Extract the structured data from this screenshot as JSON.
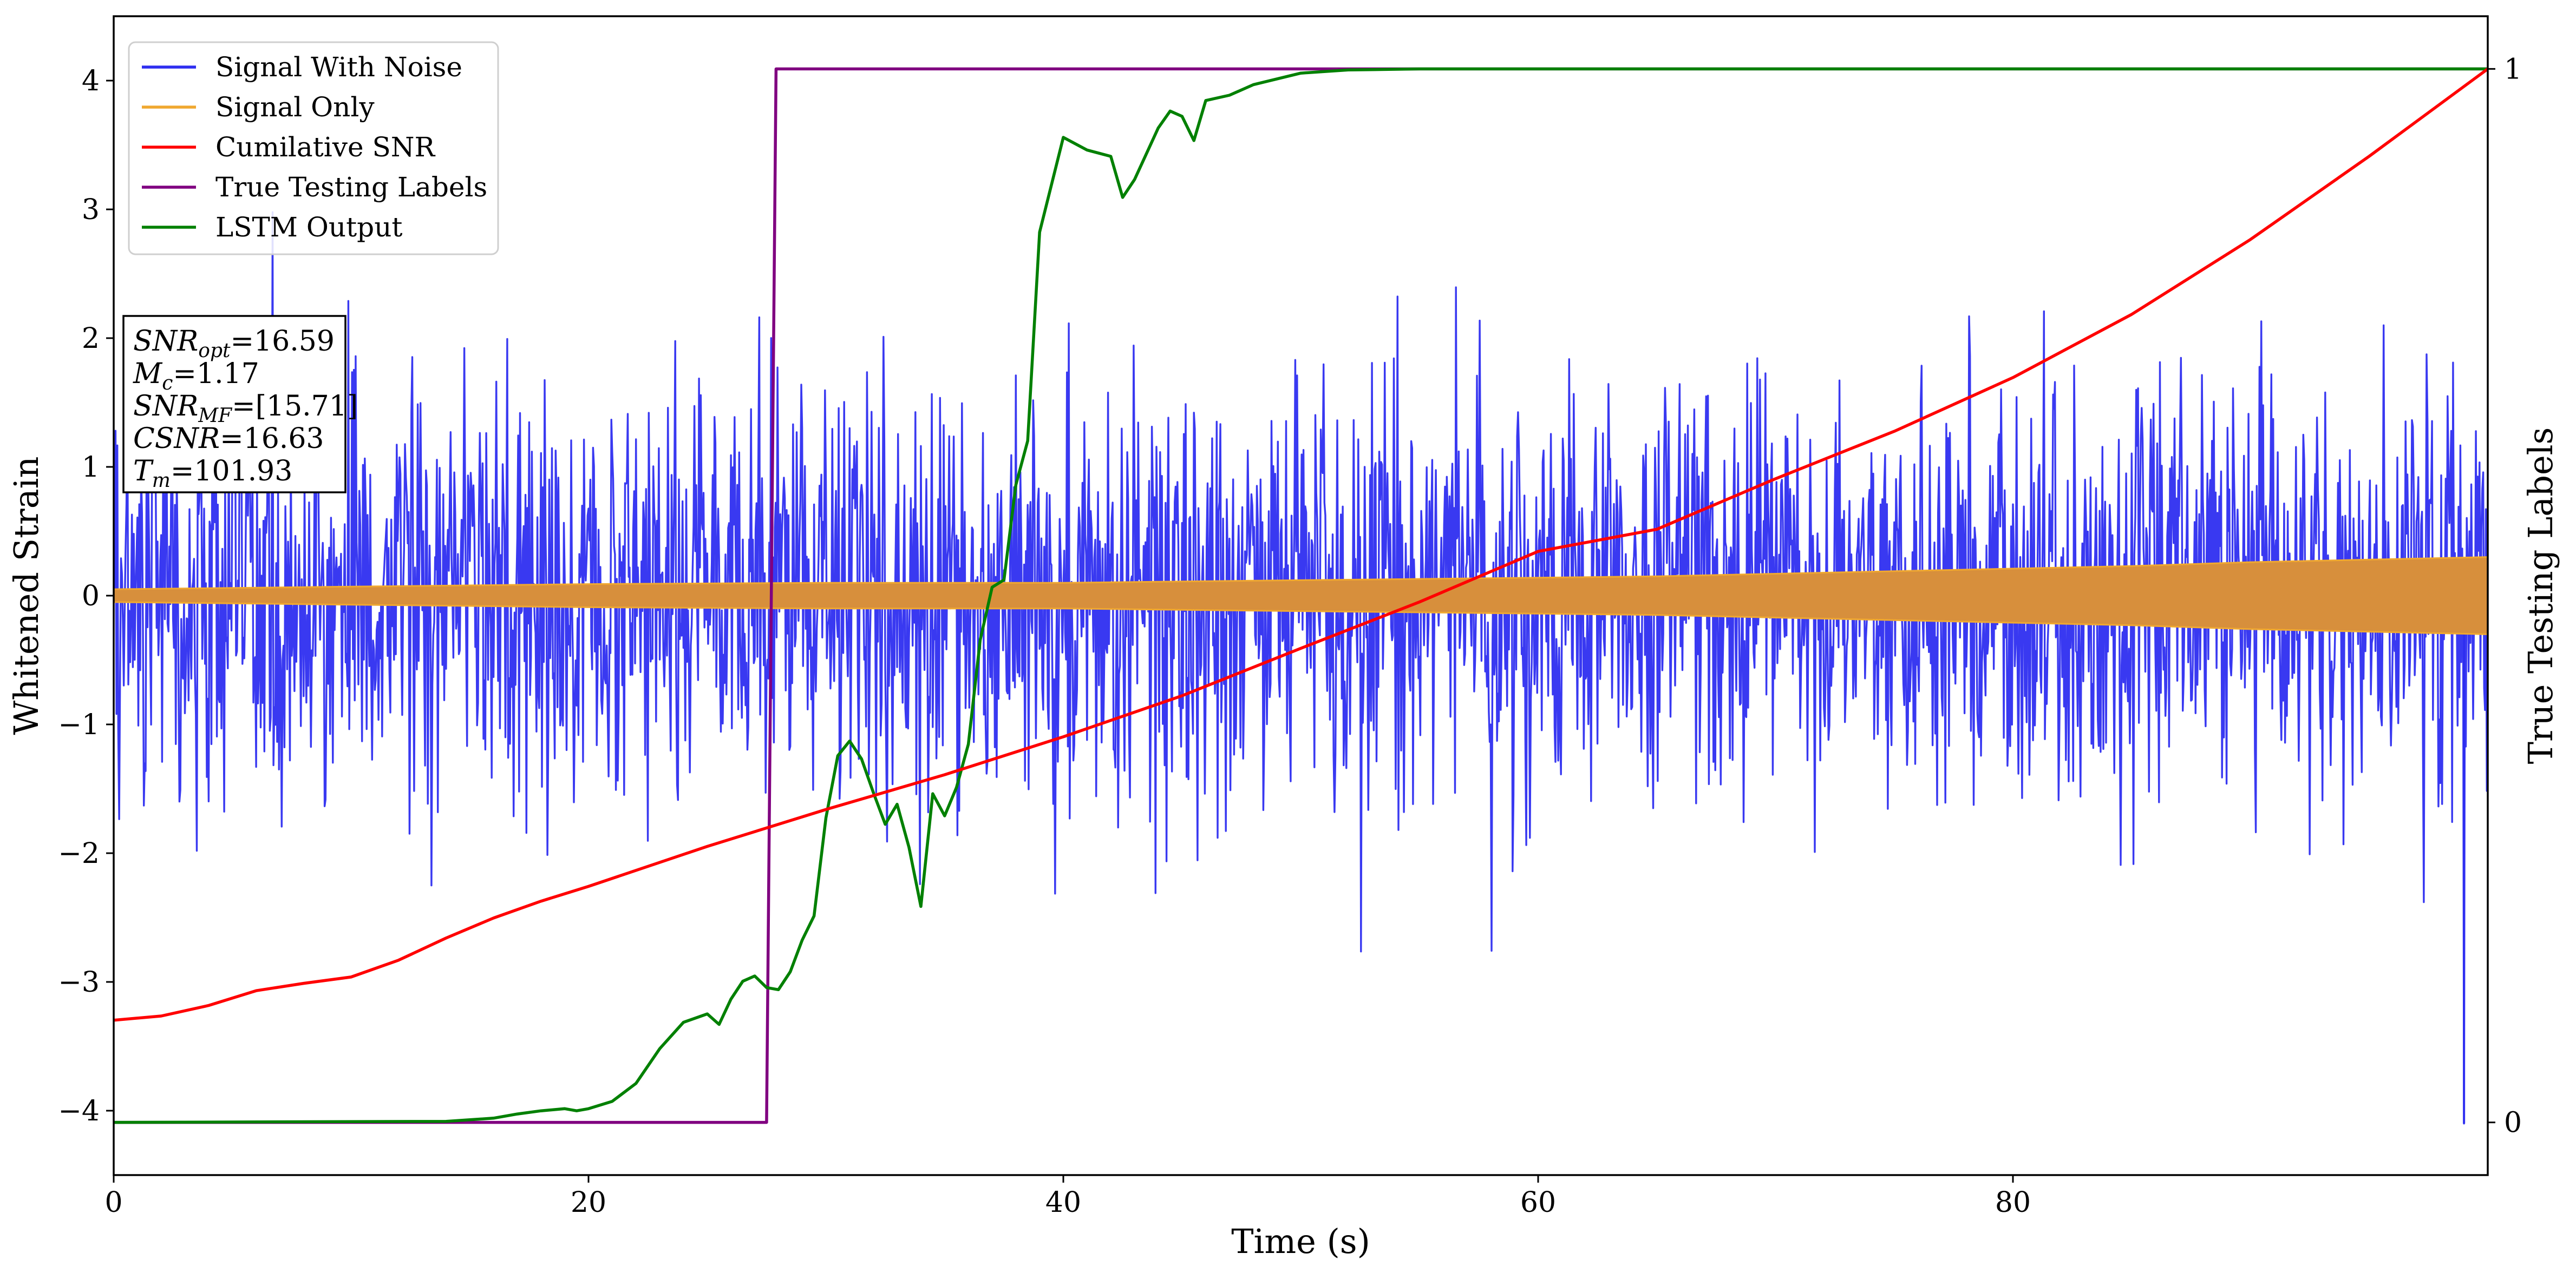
{
  "chart_data": {
    "type": "line",
    "xlabel": "Time (s)",
    "ylabel": "Whitened Strain",
    "ylabel_right": "True Testing Labels",
    "xlim": [
      0,
      100
    ],
    "ylim": [
      -4.5,
      4.5
    ],
    "ylim_right": [
      -0.05,
      1.05
    ],
    "xticks": [
      0,
      20,
      40,
      60,
      80
    ],
    "yticks": [
      -4,
      -3,
      -2,
      -1,
      0,
      1,
      2,
      3,
      4
    ],
    "yticks_right": [
      0,
      1
    ],
    "tick_labels": {
      "x": [
        "0",
        "20",
        "40",
        "60",
        "80"
      ],
      "y": [
        "−4",
        "−3",
        "−2",
        "−1",
        "0",
        "1",
        "2",
        "3",
        "4"
      ],
      "y_right": [
        "0",
        "1"
      ]
    },
    "legend": {
      "placement": "top-left",
      "entries": [
        {
          "label": "Signal With Noise",
          "color": "#2e2ef0"
        },
        {
          "label": "Signal Only",
          "color": "#f0a830"
        },
        {
          "label": "Cumilative SNR",
          "color": "#ff0000"
        },
        {
          "label": "True Testing Labels",
          "color": "#800080"
        },
        {
          "label": "LSTM Output",
          "color": "#008000"
        }
      ]
    },
    "annotation_box": {
      "placement": "left",
      "lines": [
        {
          "sym": "SNR",
          "sub": "opt",
          "val": "=16.59"
        },
        {
          "sym": "M",
          "sub": "c",
          "val": "=1.17"
        },
        {
          "sym": "SNR",
          "sub": "MF",
          "val": "=[15.71]"
        },
        {
          "sym": "CSNR",
          "sub": "",
          "val": "=16.63"
        },
        {
          "sym": "T",
          "sub": "m",
          "val": "=101.93"
        }
      ]
    },
    "grid": false,
    "series": [
      {
        "name": "Signal With Noise",
        "axis": "left",
        "color": "#2e2ef0",
        "style": "noise-band",
        "typical_range": [
          -1.5,
          1.5
        ],
        "peak_range": [
          -3.05,
          3.0
        ],
        "outlier_min": {
          "x": 99.0,
          "y": -4.1
        }
      },
      {
        "name": "Signal Only",
        "axis": "left",
        "color": "#f0a830",
        "style": "envelope",
        "x": [
          0,
          10,
          20,
          30,
          40,
          45,
          50,
          55,
          60,
          65,
          70,
          75,
          80,
          85,
          90,
          95,
          100
        ],
        "amplitude": [
          0.05,
          0.07,
          0.09,
          0.1,
          0.1,
          0.11,
          0.12,
          0.13,
          0.14,
          0.15,
          0.17,
          0.19,
          0.21,
          0.23,
          0.26,
          0.28,
          0.3
        ]
      },
      {
        "name": "Cumilative SNR",
        "axis": "right",
        "color": "#ff0000",
        "x": [
          0,
          2,
          4,
          6,
          8,
          10,
          12,
          14,
          16,
          18,
          20,
          25,
          30,
          35,
          40,
          45,
          50,
          55,
          60,
          65,
          70,
          75,
          80,
          85,
          90,
          95,
          100
        ],
        "y": [
          0.097,
          0.101,
          0.111,
          0.125,
          0.132,
          0.138,
          0.154,
          0.175,
          0.194,
          0.21,
          0.224,
          0.262,
          0.297,
          0.33,
          0.366,
          0.405,
          0.45,
          0.494,
          0.542,
          0.563,
          0.611,
          0.656,
          0.707,
          0.767,
          0.838,
          0.917,
          1.0
        ]
      },
      {
        "name": "True Testing Labels",
        "axis": "right",
        "color": "#800080",
        "x": [
          0,
          27.5,
          27.9,
          100
        ],
        "y": [
          0,
          0,
          1,
          1
        ]
      },
      {
        "name": "LSTM Output",
        "axis": "right",
        "color": "#008000",
        "x": [
          0,
          14,
          16,
          17,
          18,
          19,
          19.5,
          20,
          21,
          22,
          23,
          24,
          25,
          25.5,
          26,
          26.5,
          27,
          27.5,
          28,
          28.5,
          29,
          29.5,
          30,
          30.5,
          31,
          31.5,
          32,
          32.5,
          33,
          33.5,
          34,
          34.5,
          35,
          35.5,
          36,
          36.5,
          37,
          37.5,
          38,
          38.5,
          39,
          40,
          41,
          42,
          42.5,
          43,
          44,
          44.5,
          45,
          45.5,
          46,
          47,
          48,
          50,
          52,
          55,
          60,
          100
        ],
        "y": [
          0,
          0.001,
          0.004,
          0.008,
          0.011,
          0.013,
          0.011,
          0.013,
          0.02,
          0.037,
          0.07,
          0.095,
          0.103,
          0.093,
          0.117,
          0.134,
          0.139,
          0.128,
          0.126,
          0.143,
          0.173,
          0.196,
          0.289,
          0.348,
          0.362,
          0.345,
          0.313,
          0.283,
          0.302,
          0.261,
          0.205,
          0.312,
          0.291,
          0.318,
          0.359,
          0.458,
          0.508,
          0.515,
          0.605,
          0.647,
          0.845,
          0.935,
          0.923,
          0.917,
          0.878,
          0.895,
          0.944,
          0.96,
          0.955,
          0.932,
          0.97,
          0.975,
          0.985,
          0.996,
          0.999,
          1.0,
          1.0,
          1.0
        ]
      }
    ]
  }
}
